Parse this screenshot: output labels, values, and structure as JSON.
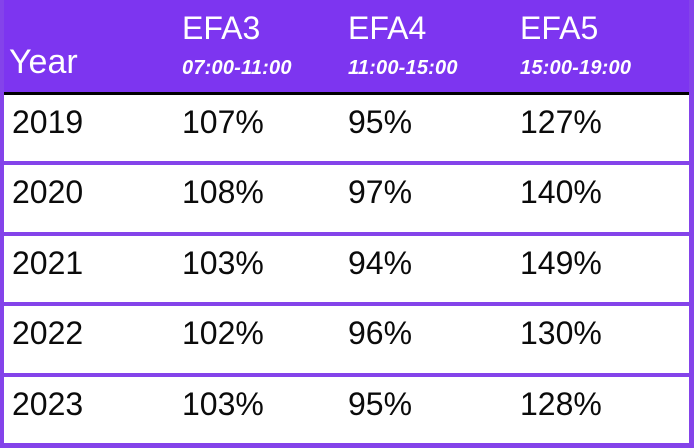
{
  "colors": {
    "header_bg": "#7d35f0",
    "border": "#8443ea",
    "header_separator": "#000000",
    "header_text": "#ffffff",
    "body_text": "#0b0b0b"
  },
  "table": {
    "year_header": "Year",
    "columns": [
      {
        "label": "EFA3",
        "sublabel": "07:00-11:00"
      },
      {
        "label": "EFA4",
        "sublabel": "11:00-15:00"
      },
      {
        "label": "EFA5",
        "sublabel": "15:00-19:00"
      }
    ],
    "rows": [
      {
        "year": "2019",
        "values": [
          "107%",
          "95%",
          "127%"
        ]
      },
      {
        "year": "2020",
        "values": [
          "108%",
          "97%",
          "140%"
        ]
      },
      {
        "year": "2021",
        "values": [
          "103%",
          "94%",
          "149%"
        ]
      },
      {
        "year": "2022",
        "values": [
          "102%",
          "96%",
          "130%"
        ]
      },
      {
        "year": "2023",
        "values": [
          "103%",
          "95%",
          "128%"
        ]
      }
    ]
  },
  "chart_data": {
    "type": "table",
    "title": "",
    "columns": [
      "Year",
      "EFA3 07:00-11:00",
      "EFA4 11:00-15:00",
      "EFA5 15:00-19:00"
    ],
    "rows": [
      [
        "2019",
        "107%",
        "95%",
        "127%"
      ],
      [
        "2020",
        "108%",
        "97%",
        "140%"
      ],
      [
        "2021",
        "103%",
        "94%",
        "149%"
      ],
      [
        "2022",
        "102%",
        "96%",
        "130%"
      ],
      [
        "2023",
        "103%",
        "95%",
        "128%"
      ]
    ],
    "series": [
      {
        "name": "EFA3 07:00-11:00",
        "values": [
          107,
          108,
          103,
          102,
          103
        ]
      },
      {
        "name": "EFA4 11:00-15:00",
        "values": [
          95,
          97,
          94,
          96,
          95
        ]
      },
      {
        "name": "EFA5 15:00-19:00",
        "values": [
          127,
          140,
          149,
          130,
          128
        ]
      }
    ],
    "categories": [
      "2019",
      "2020",
      "2021",
      "2022",
      "2023"
    ],
    "unit": "%"
  }
}
